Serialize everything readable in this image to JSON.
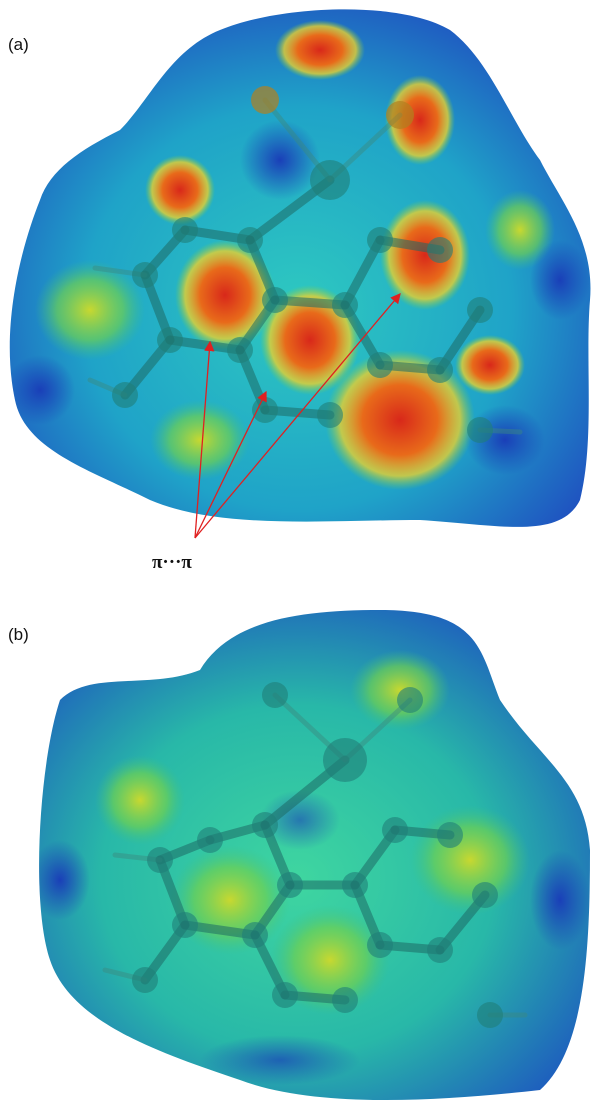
{
  "panels": [
    {
      "label": "(a)",
      "annotation": "π···π"
    },
    {
      "label": "(b)"
    }
  ]
}
